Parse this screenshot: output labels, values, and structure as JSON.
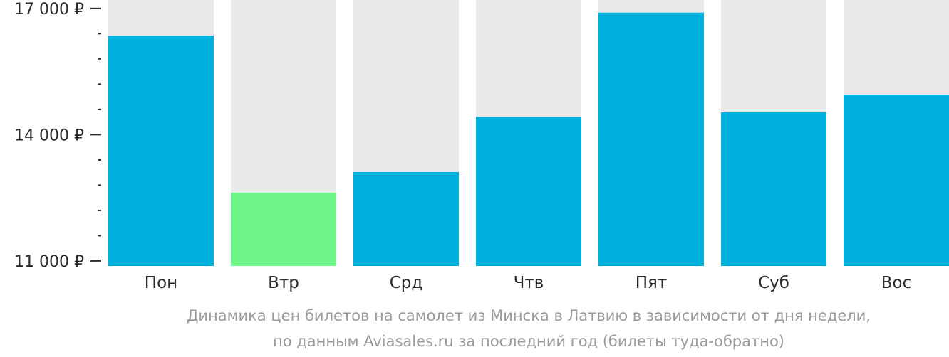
{
  "chart_data": {
    "type": "bar",
    "categories": [
      "Пон",
      "Втр",
      "Срд",
      "Чтв",
      "Пят",
      "Суб",
      "Вос"
    ],
    "values": [
      16350,
      12620,
      13110,
      14420,
      16900,
      14530,
      14950
    ],
    "highlight_index": 1,
    "ylim": [
      10880,
      17200
    ],
    "yticks": [
      11000,
      14000,
      17000
    ],
    "ytick_labels": [
      "11 000 ₽",
      "14 000 ₽",
      "17 000 ₽"
    ],
    "minor_step": 600,
    "colors": {
      "bar": "#00b0dd",
      "highlight": "#6ef58a",
      "background_bar": "#e8e8e8",
      "axis": "#2b2b2b",
      "caption": "#9a9a9a"
    },
    "caption_lines": [
      "Динамика цен билетов на самолет из Минска в Латвию в зависимости от дня недели,",
      "по данным Aviasales.ru за последний год (билеты туда-обратно)"
    ]
  }
}
